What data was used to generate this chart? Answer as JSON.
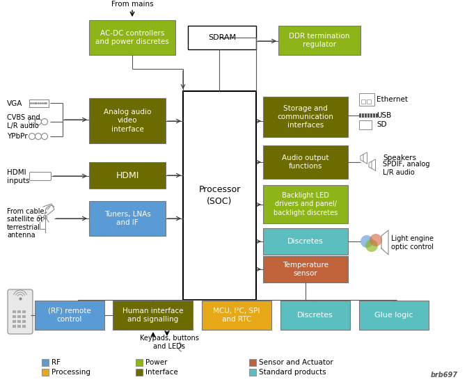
{
  "bg_color": "#ffffff",
  "colors": {
    "power": "#8db517",
    "interface": "#6b6b00",
    "processing": "#e6a817",
    "rf": "#5b9bd5",
    "sensor": "#c0623a",
    "standard": "#5bbfbf",
    "white": "#ffffff"
  },
  "legend": [
    {
      "label": "RF",
      "color": "#5b9bd5"
    },
    {
      "label": "Processing",
      "color": "#e6a817"
    },
    {
      "label": "Power",
      "color": "#8db517"
    },
    {
      "label": "Interface",
      "color": "#6b6b00"
    },
    {
      "label": "Sensor and Actuator",
      "color": "#c0623a"
    },
    {
      "label": "Standard products",
      "color": "#5bbfbf"
    }
  ]
}
